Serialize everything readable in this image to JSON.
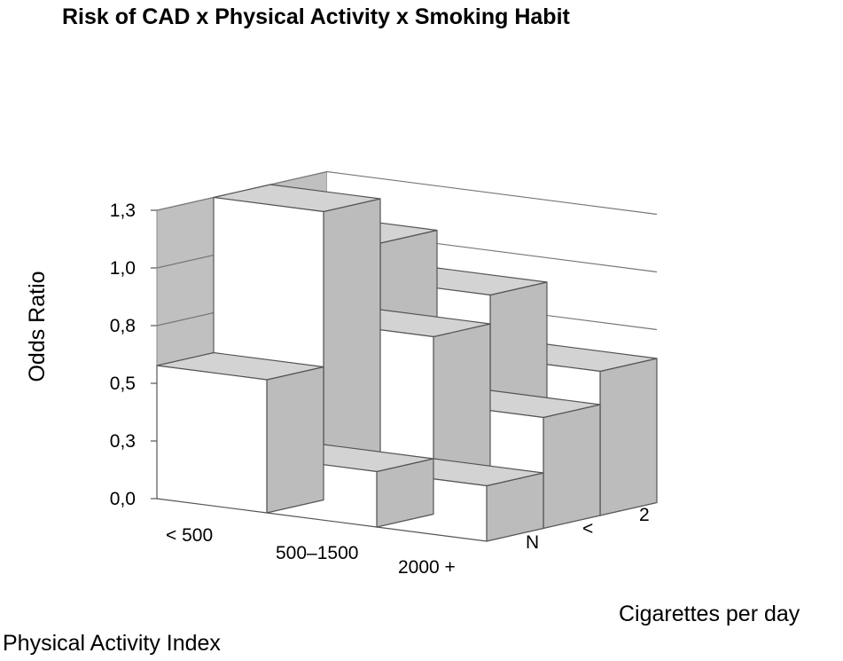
{
  "chart_data": {
    "type": "bar3d",
    "title": "Risk of CAD x Physical Activity x Smoking Habit",
    "ylabel": "Odds Ratio",
    "xlabel": "Physical Activity Index",
    "zlabel": "Cigarettes per day",
    "y_ticks": [
      "0,0",
      "0,3",
      "0,5",
      "0,8",
      "1,0",
      "1,3"
    ],
    "ylim": [
      0,
      1.3
    ],
    "x_categories": [
      "< 500",
      "500–1500",
      "2000 +"
    ],
    "z_categories": [
      "N",
      "<",
      "2"
    ],
    "series": [
      {
        "name": "N",
        "values": [
          0.6,
          0.25,
          0.25
        ]
      },
      {
        "name": "<",
        "values": [
          1.3,
          0.8,
          0.5
        ]
      },
      {
        "name": "2",
        "values": [
          1.1,
          0.93,
          0.65
        ]
      }
    ],
    "colors": {
      "top": "#d3d3d3",
      "side": "#bcbcbc",
      "front": "#ffffff",
      "edge": "#555555",
      "wall": "#c0c0c0"
    },
    "grid": true
  }
}
